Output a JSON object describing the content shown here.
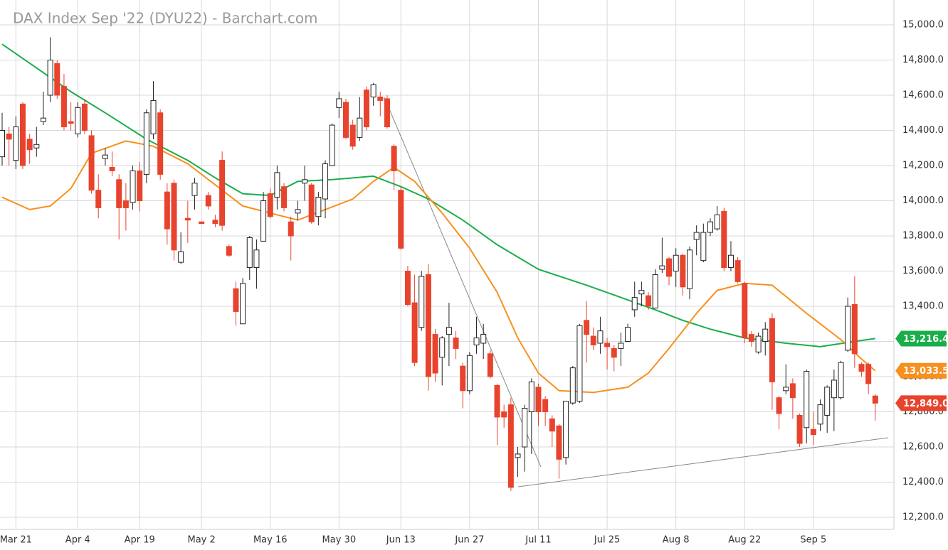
{
  "chart_data": {
    "type": "candlestick",
    "title": "DAX Index Sep '22 (DYU22) - Barchart.com",
    "categories": [
      null,
      null,
      "Mar 21",
      null,
      null,
      null,
      null,
      null,
      null,
      null,
      null,
      "Apr 4",
      null,
      null,
      null,
      null,
      null,
      null,
      null,
      null,
      "Apr 19",
      null,
      null,
      null,
      null,
      null,
      null,
      null,
      null,
      "May 2",
      null,
      null,
      null,
      null,
      null,
      null,
      null,
      null,
      null,
      "May 16",
      null,
      null,
      null,
      null,
      null,
      null,
      null,
      null,
      null,
      "May 30",
      null,
      null,
      null,
      null,
      null,
      null,
      null,
      null,
      "Jun 13",
      null,
      null,
      null,
      null,
      null,
      null,
      null,
      null,
      null,
      "Jun 27",
      null,
      null,
      null,
      null,
      null,
      null,
      null,
      null,
      null,
      "Jul 11",
      null,
      null,
      null,
      null,
      null,
      null,
      null,
      null,
      null,
      "Jul 25",
      null,
      null,
      null,
      null,
      null,
      null,
      null,
      null,
      null,
      "Aug 8",
      null,
      null,
      null,
      null,
      null,
      null,
      null,
      null,
      null,
      "Aug 22",
      null,
      null,
      null,
      null,
      null,
      null,
      null,
      null,
      null,
      "Sep 5",
      null,
      null,
      null,
      null,
      null,
      null,
      null,
      null,
      null
    ],
    "open": [
      14250,
      14380,
      14230,
      14550,
      14350,
      14300,
      14450,
      14600,
      14780,
      14650,
      14450,
      14380,
      14550,
      14370,
      14060,
      14240,
      14190,
      14120,
      14000,
      13990,
      14170,
      14150,
      14380,
      14500,
      14050,
      14100,
      13650,
      13900,
      14030,
      13880,
      14030,
      13890,
      14230,
      13740,
      13500,
      13300,
      13620,
      13620,
      13770,
      14040,
      14020,
      14080,
      13880,
      13930,
      14100,
      14090,
      13910,
      14010,
      14200,
      14530,
      14560,
      14430,
      14360,
      14630,
      14590,
      14590,
      14580,
      14310,
      14060,
      13600,
      13420,
      13280,
      13580,
      13240,
      13110,
      13240,
      13220,
      13060,
      12920,
      13180,
      13190,
      13130,
      12950,
      12800,
      12840,
      12540,
      12600,
      12800,
      12940,
      12870,
      12760,
      12720,
      12540,
      12850,
      12860,
      13320,
      13230,
      13190,
      13190,
      13160,
      13160,
      13200,
      13380,
      13470,
      13460,
      13390,
      13610,
      13670,
      13600,
      13690,
      13500,
      13780,
      13660,
      13820,
      13840,
      13940,
      13620,
      13660,
      13530,
      13240,
      13140,
      13200,
      13330,
      12880,
      12920,
      12960,
      12780,
      12710,
      12700,
      12730,
      12780,
      12880,
      12880,
      13150,
      13410,
      13070,
      13070,
      12890
    ],
    "high": [
      14500,
      14420,
      14480,
      14560,
      14380,
      14420,
      14620,
      14930,
      14800,
      14720,
      14560,
      14560,
      14580,
      14400,
      14150,
      14300,
      14280,
      14150,
      14100,
      14200,
      14220,
      14520,
      14680,
      14520,
      14100,
      14120,
      13820,
      14000,
      14130,
      13880,
      14050,
      13920,
      14280,
      13750,
      13540,
      13560,
      13800,
      13780,
      14050,
      14070,
      14200,
      14100,
      13910,
      14000,
      14200,
      14100,
      14050,
      14230,
      14440,
      14620,
      14580,
      14460,
      14590,
      14650,
      14670,
      14620,
      14600,
      14320,
      14080,
      13630,
      13580,
      13600,
      13640,
      13270,
      13230,
      13420,
      13260,
      13080,
      13140,
      13340,
      13300,
      13150,
      12960,
      12840,
      12880,
      12600,
      12840,
      12990,
      12960,
      12890,
      12780,
      12730,
      12860,
      13060,
      13300,
      13430,
      13280,
      13340,
      13220,
      13180,
      13250,
      13300,
      13540,
      13540,
      13480,
      13610,
      13790,
      13680,
      13730,
      13700,
      13740,
      13860,
      13870,
      13900,
      13970,
      13960,
      13770,
      13680,
      13540,
      13260,
      13250,
      13310,
      13360,
      12890,
      13070,
      12990,
      12790,
      13040,
      12800,
      12870,
      12950,
      13040,
      13090,
      13450,
      13570,
      13080,
      13080,
      12900
    ],
    "low": [
      14200,
      14200,
      14180,
      14180,
      14210,
      14250,
      14430,
      14560,
      14580,
      14400,
      14400,
      14360,
      14380,
      14040,
      13900,
      14200,
      14140,
      13780,
      13830,
      13950,
      13940,
      14100,
      14350,
      14120,
      13750,
      13660,
      13640,
      13760,
      13950,
      13870,
      13950,
      13850,
      13830,
      13680,
      13290,
      13300,
      13550,
      13500,
      13770,
      13900,
      13950,
      13940,
      13660,
      13890,
      14000,
      13870,
      13860,
      13900,
      14200,
      14470,
      14350,
      14290,
      14340,
      14400,
      14540,
      14480,
      14410,
      14060,
      13720,
      13400,
      13060,
      13260,
      12920,
      12970,
      12950,
      13060,
      13100,
      12820,
      12900,
      13130,
      13100,
      12990,
      12610,
      12710,
      12350,
      12430,
      12460,
      12560,
      12720,
      12720,
      12600,
      12420,
      12500,
      12840,
      12850,
      13080,
      13150,
      13130,
      13040,
      13030,
      13060,
      13200,
      13340,
      13400,
      13380,
      13390,
      13590,
      13520,
      13510,
      13460,
      13440,
      13690,
      13650,
      13800,
      13830,
      13600,
      13600,
      13530,
      13190,
      13170,
      13130,
      13120,
      12810,
      12700,
      12900,
      12760,
      12600,
      12620,
      12610,
      12690,
      12680,
      12690,
      12870,
      13140,
      13050,
      13000,
      12900,
      12750
    ],
    "close": [
      14400,
      14350,
      14420,
      14200,
      14290,
      14320,
      14470,
      14800,
      14600,
      14420,
      14440,
      14530,
      14400,
      14060,
      13960,
      14260,
      14170,
      13960,
      13960,
      14170,
      14000,
      14500,
      14570,
      14150,
      13840,
      13720,
      13710,
      13890,
      14100,
      13870,
      13970,
      13870,
      13860,
      13690,
      13370,
      13530,
      13790,
      13720,
      14000,
      13910,
      14160,
      13960,
      13800,
      13950,
      14120,
      13880,
      14020,
      14210,
      14430,
      14580,
      14360,
      14310,
      14470,
      14420,
      14660,
      14570,
      14420,
      14170,
      13730,
      13410,
      13080,
      13570,
      13000,
      13020,
      13220,
      13280,
      13160,
      12920,
      13120,
      13220,
      13240,
      13000,
      12770,
      12770,
      12370,
      12560,
      12820,
      12970,
      12800,
      12800,
      12690,
      12530,
      12860,
      13050,
      13290,
      13240,
      13180,
      13260,
      13170,
      13110,
      13190,
      13280,
      13450,
      13490,
      13400,
      13580,
      13630,
      13570,
      13690,
      13510,
      13720,
      13820,
      13820,
      13880,
      13920,
      13620,
      13690,
      13540,
      13220,
      13200,
      13230,
      13270,
      12970,
      12790,
      12940,
      12880,
      12620,
      13030,
      12670,
      12840,
      12940,
      12980,
      13080,
      13400,
      13130,
      13030,
      12960,
      12849
    ],
    "up_color": "#ffffff",
    "down_color": "#e8432d",
    "lines": [
      {
        "color": "#1aae4a",
        "x": [
          0,
          10,
          15,
          21,
          27,
          31,
          35,
          39,
          43,
          48,
          54,
          58,
          62,
          67,
          72,
          78,
          85,
          90,
          95,
          99,
          103,
          108,
          114,
          119,
          124,
          127
        ],
        "values": [
          14890,
          14620,
          14500,
          14350,
          14230,
          14130,
          14040,
          14030,
          14110,
          14120,
          14140,
          14080,
          14010,
          13890,
          13750,
          13610,
          13520,
          13450,
          13380,
          13320,
          13270,
          13220,
          13190,
          13170,
          13200,
          13216.4
        ]
      },
      {
        "color": "#f7901e",
        "x": [
          0,
          4,
          7,
          10,
          13,
          18,
          22,
          27,
          31,
          35,
          39,
          43,
          47,
          51,
          54,
          57,
          60,
          64,
          68,
          72,
          75,
          78,
          81,
          86,
          91,
          94,
          97,
          101,
          104,
          108,
          112,
          117,
          122,
          125,
          127
        ],
        "values": [
          14020,
          13950,
          13970,
          14070,
          14270,
          14340,
          14310,
          14210,
          14090,
          13970,
          13930,
          13890,
          13950,
          14010,
          14110,
          14190,
          14110,
          13930,
          13730,
          13480,
          13220,
          13020,
          12920,
          12910,
          12940,
          13020,
          13160,
          13360,
          13490,
          13530,
          13520,
          13360,
          13210,
          13100,
          13033.5
        ]
      }
    ],
    "price_tags": [
      {
        "value": 13216.4,
        "label": "13,216.4",
        "color": "#1aae4a"
      },
      {
        "value": 13033.5,
        "label": "13,033.5",
        "color": "#f7901e"
      },
      {
        "value": 12849,
        "label": "12,849.0",
        "color": "#e8432d"
      }
    ],
    "ylim": [
      12200,
      15000
    ],
    "yticks": [
      {
        "value": 12200,
        "label": "12,200.0"
      },
      {
        "value": 12400,
        "label": "12,400.0"
      },
      {
        "value": 12600,
        "label": "12,600.0"
      },
      {
        "value": 12800,
        "label": "12,800.0"
      },
      {
        "value": 13000,
        "label": "13,000.0"
      },
      {
        "value": 13200,
        "label": "13,200.0"
      },
      {
        "value": 13400,
        "label": "13,400.0"
      },
      {
        "value": 13600,
        "label": "13,600.0"
      },
      {
        "value": 13800,
        "label": "13,800.0"
      },
      {
        "value": 14000,
        "label": "14,000.0"
      },
      {
        "value": 14200,
        "label": "14,200.0"
      },
      {
        "value": 14400,
        "label": "14,400.0"
      },
      {
        "value": 14600,
        "label": "14,600.0"
      },
      {
        "value": 14800,
        "label": "14,800.0"
      },
      {
        "value": 15000,
        "label": "15,000.0"
      }
    ],
    "grid": true
  }
}
